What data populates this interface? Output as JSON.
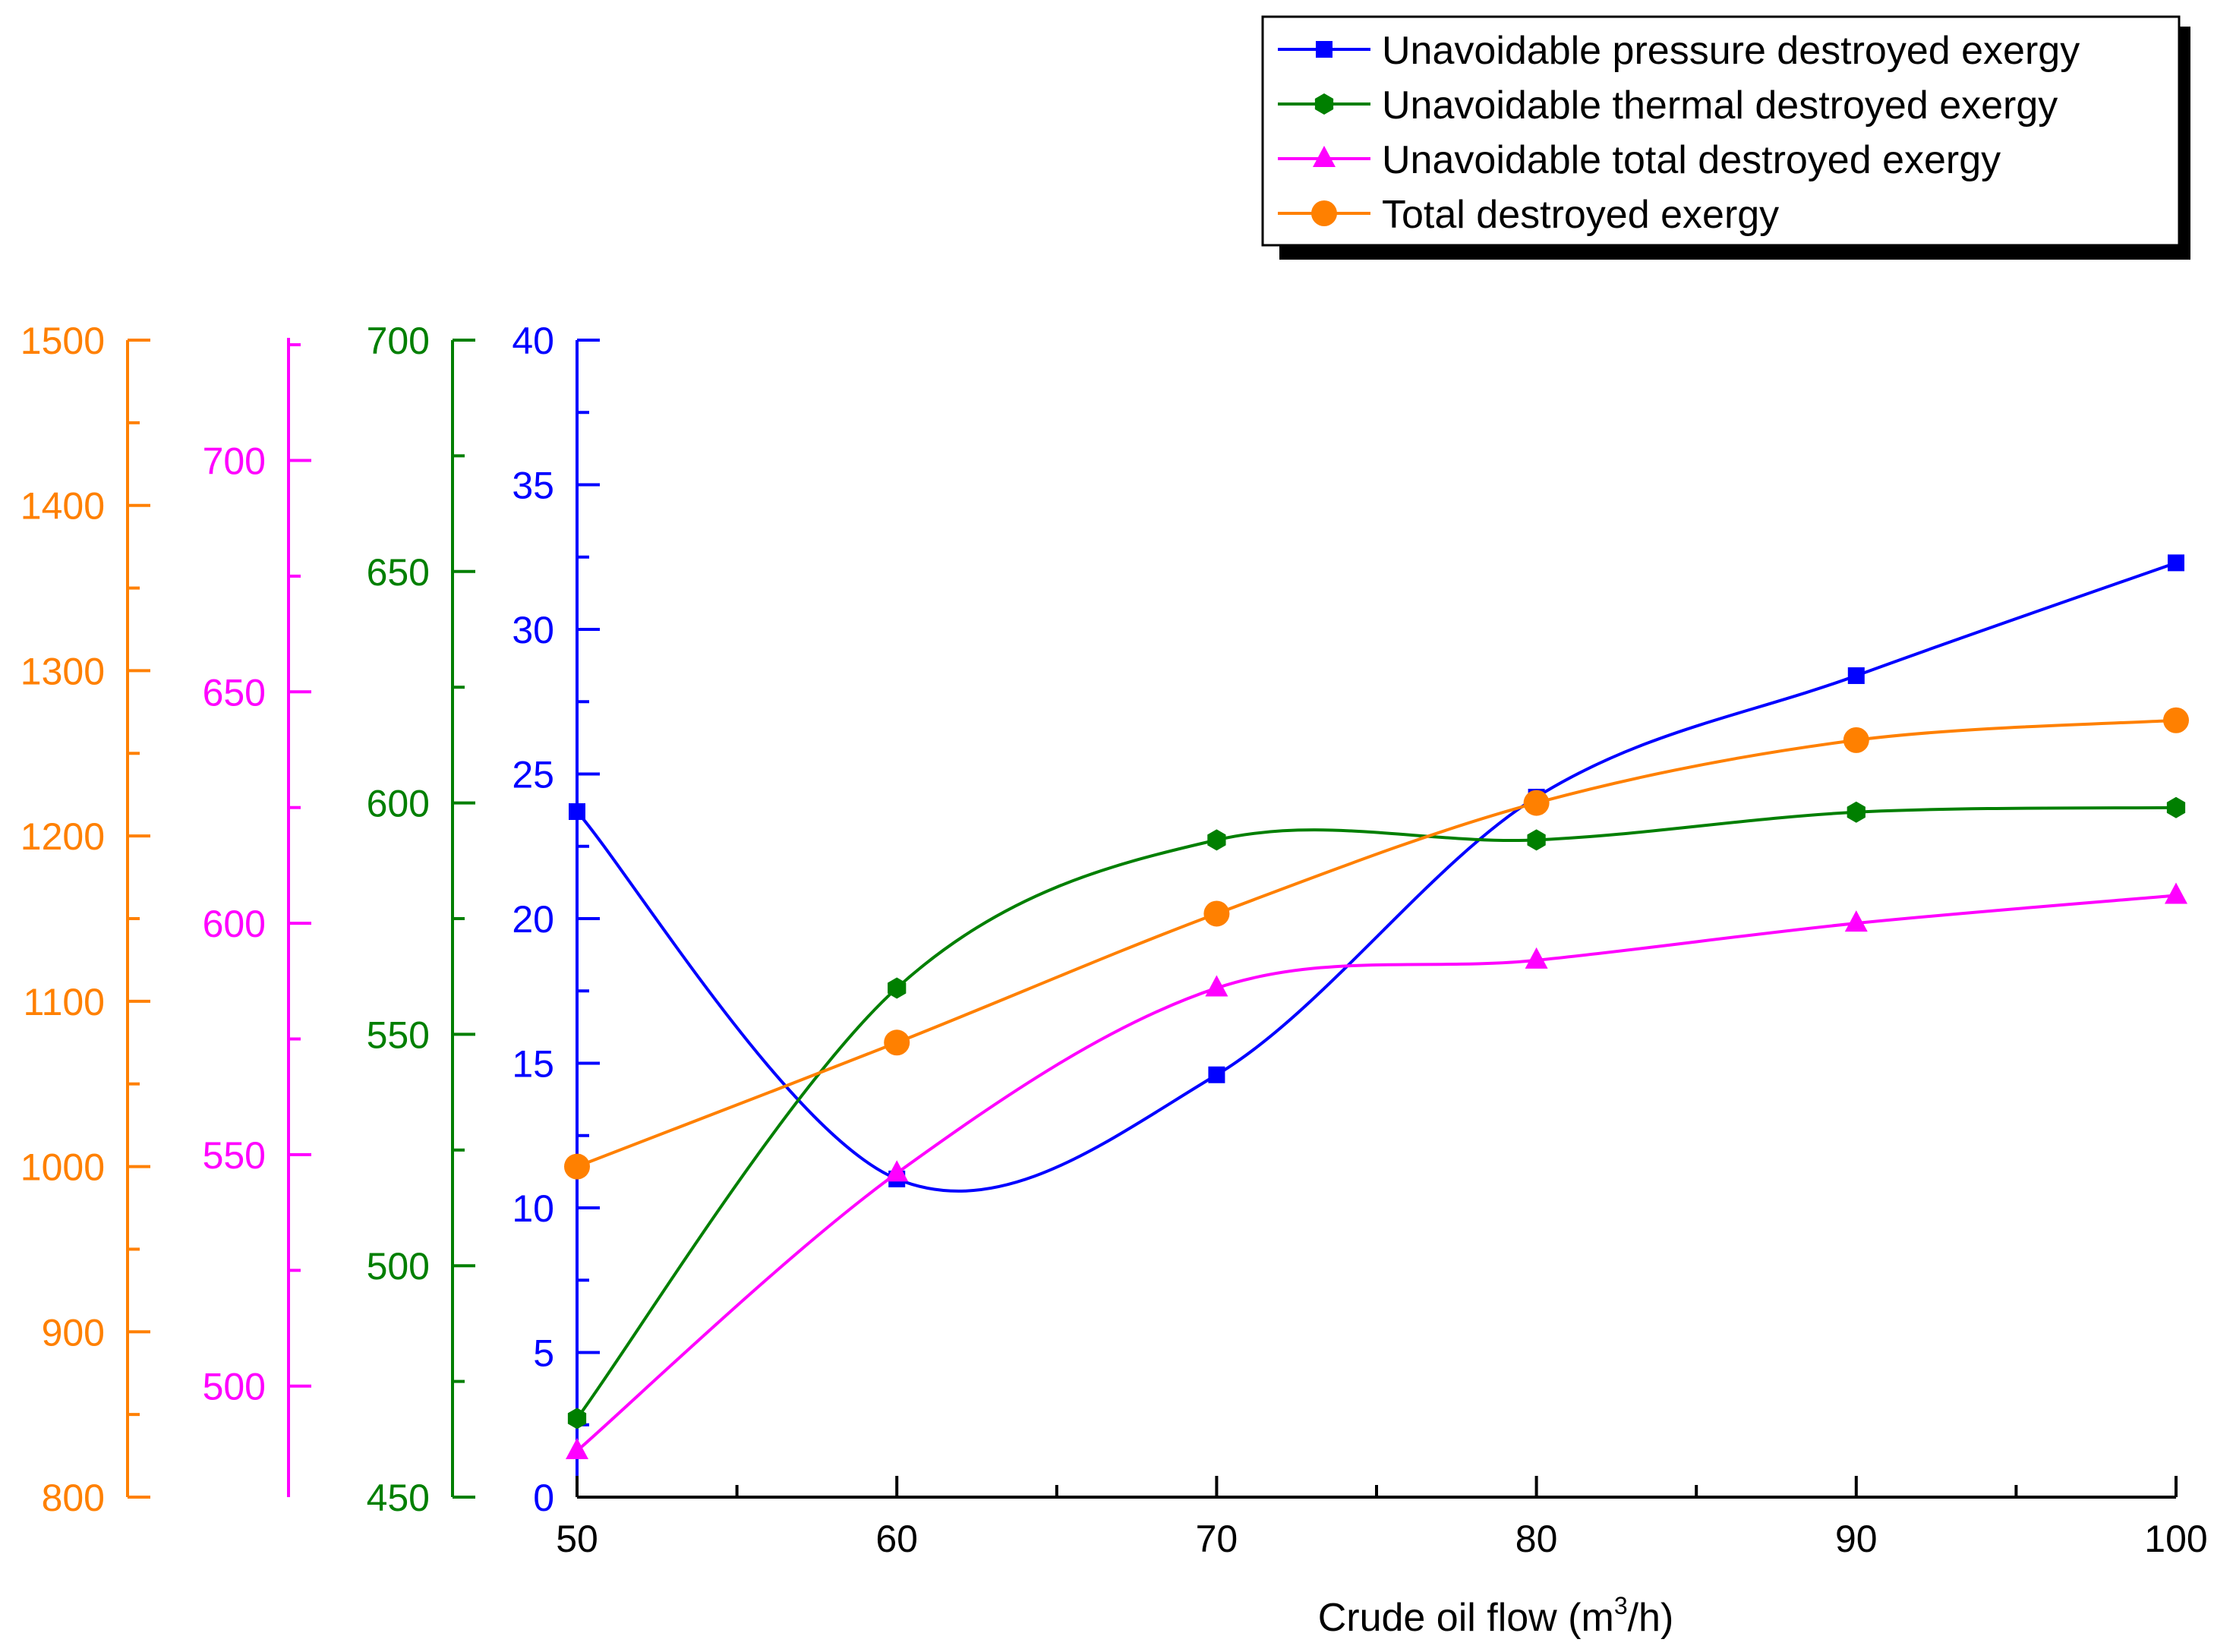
{
  "colors": {
    "pressure": "#0000ff",
    "thermal": "#007f00",
    "total_unavoidable": "#ff00ff",
    "total": "#ff8000",
    "axis_black": "#000000"
  },
  "chart_data": {
    "type": "line",
    "xlabel": "Crude oil flow (m³/h)",
    "xlabel_main": "Crude oil flow (m",
    "xlabel_sup": "3",
    "xlabel_end": "/h)",
    "x": [
      50,
      60,
      70,
      80,
      90,
      100
    ],
    "xlim": [
      50,
      100
    ],
    "x_ticks": [
      "50",
      "60",
      "70",
      "80",
      "90",
      "100"
    ],
    "axes": [
      {
        "key": "total",
        "color": "#ff8000",
        "ylim": [
          800,
          1500
        ],
        "ticks": [
          "800",
          "900",
          "1000",
          "1100",
          "1200",
          "1300",
          "1400",
          "1500"
        ],
        "tick_values": [
          800,
          900,
          1000,
          1100,
          1200,
          1300,
          1400,
          1500
        ]
      },
      {
        "key": "total_unavoidable",
        "color": "#ff00ff",
        "ylim": [
          476,
          726
        ],
        "ticks": [
          "500",
          "550",
          "600",
          "650",
          "700"
        ],
        "tick_values": [
          500,
          550,
          600,
          650,
          700
        ]
      },
      {
        "key": "thermal",
        "color": "#007f00",
        "ylim": [
          450,
          700
        ],
        "ticks": [
          "450",
          "500",
          "550",
          "600",
          "650",
          "700"
        ],
        "tick_values": [
          450,
          500,
          550,
          600,
          650,
          700
        ]
      },
      {
        "key": "pressure",
        "color": "#0000ff",
        "ylim": [
          0,
          40
        ],
        "ticks": [
          "0",
          "5",
          "10",
          "15",
          "20",
          "25",
          "30",
          "35",
          "40"
        ],
        "tick_values": [
          0,
          5,
          10,
          15,
          20,
          25,
          30,
          35,
          40
        ]
      }
    ],
    "series": [
      {
        "key": "pressure",
        "name": "Unavoidable pressure destroyed exergy",
        "marker": "square",
        "color": "#0000ff",
        "values": [
          23.7,
          11.0,
          14.6,
          24.2,
          28.4,
          32.3
        ]
      },
      {
        "key": "thermal",
        "name": "Unavoidable thermal destroyed exergy",
        "marker": "hexagon",
        "color": "#007f00",
        "values": [
          467,
          560,
          592,
          592,
          598,
          599
        ]
      },
      {
        "key": "total_unavoidable",
        "name": "Unavoidable total destroyed exergy",
        "marker": "triangle",
        "color": "#ff00ff",
        "values": [
          486,
          546,
          586,
          592,
          600,
          606
        ]
      },
      {
        "key": "total",
        "name": "Total destroyed exergy",
        "marker": "circle",
        "color": "#ff8000",
        "values": [
          1000,
          1075,
          1153,
          1220,
          1258,
          1270
        ]
      }
    ],
    "legend_position": "top-right"
  }
}
